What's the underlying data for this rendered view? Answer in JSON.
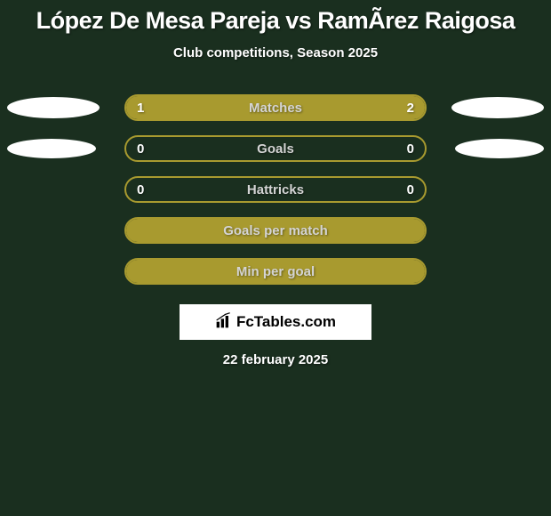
{
  "colors": {
    "background": "#1a2f1f",
    "bar_border": "#a89a2f",
    "bar_fill": "#a89a2f",
    "text_primary": "#ffffff",
    "text_label": "#d4d4d4",
    "logo_bg": "#ffffff",
    "logo_text": "#000000"
  },
  "title": "López De Mesa Pareja vs RamÃ­rez Raigosa",
  "subtitle": "Club competitions, Season 2025",
  "bars": [
    {
      "label": "Matches",
      "left_value": "1",
      "right_value": "2",
      "left_pct": 33.3,
      "right_pct": 66.7,
      "show_avatar_left": true,
      "show_avatar_right": true,
      "avatar_size": "large"
    },
    {
      "label": "Goals",
      "left_value": "0",
      "right_value": "0",
      "left_pct": 0,
      "right_pct": 0,
      "show_avatar_left": true,
      "show_avatar_right": true,
      "avatar_size": "small"
    },
    {
      "label": "Hattricks",
      "left_value": "0",
      "right_value": "0",
      "left_pct": 0,
      "right_pct": 0,
      "show_avatar_left": false,
      "show_avatar_right": false
    },
    {
      "label": "Goals per match",
      "left_value": "",
      "right_value": "",
      "left_pct": 0,
      "right_pct": 0,
      "full_fill": true,
      "show_avatar_left": false,
      "show_avatar_right": false
    },
    {
      "label": "Min per goal",
      "left_value": "",
      "right_value": "",
      "left_pct": 0,
      "right_pct": 0,
      "full_fill": true,
      "show_avatar_left": false,
      "show_avatar_right": false
    }
  ],
  "logo": {
    "icon_name": "bar-chart-icon",
    "text": "FcTables.com"
  },
  "date": "22 february 2025"
}
